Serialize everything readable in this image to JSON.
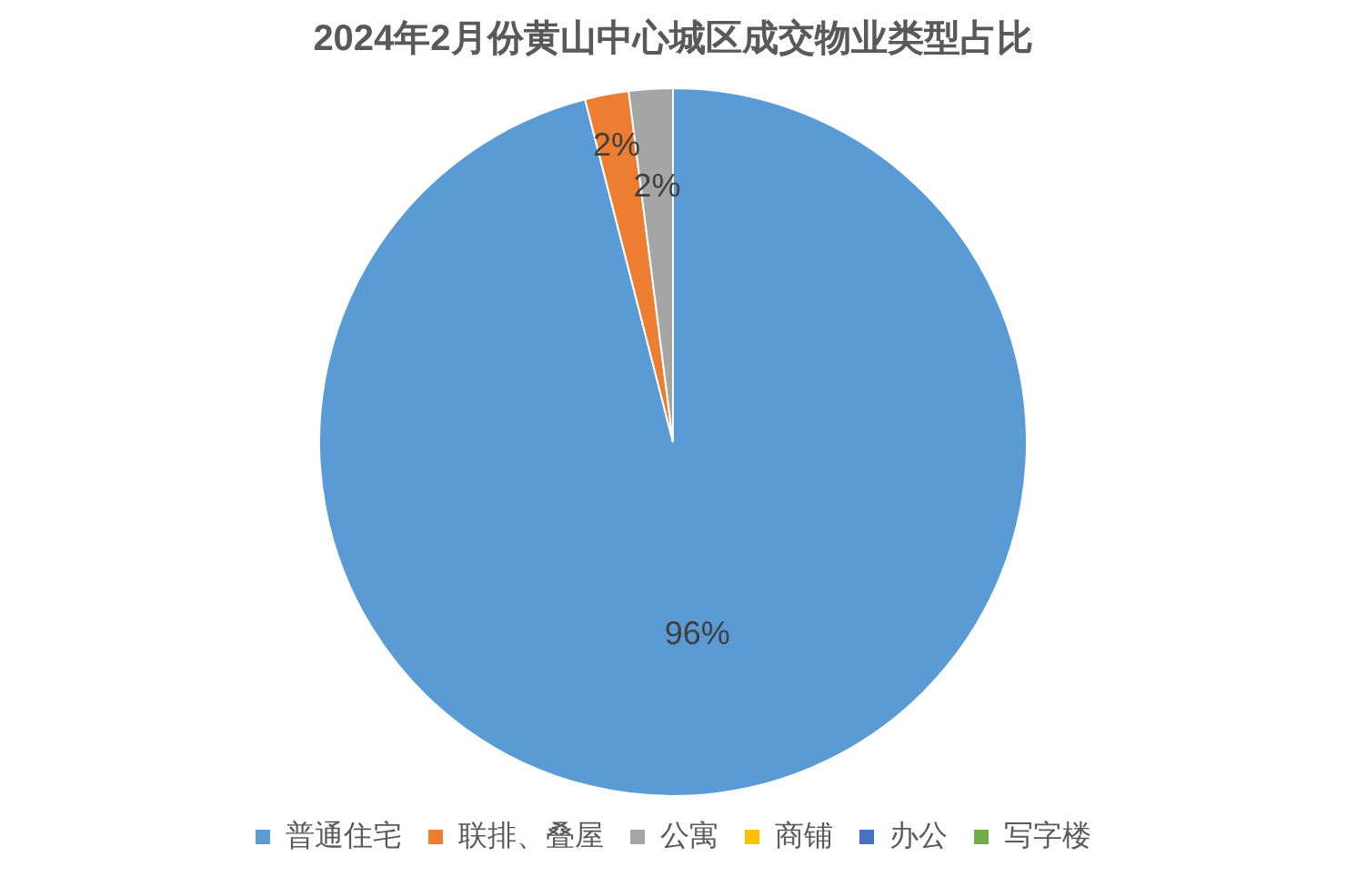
{
  "chart_data": {
    "type": "pie",
    "title": "2024年2月份黄山中心城区成交物业类型占比",
    "categories": [
      "普通住宅",
      "联排、叠屋",
      "公寓",
      "商铺",
      "办公",
      "写字楼"
    ],
    "values": [
      96,
      2,
      2,
      0,
      0,
      0
    ],
    "colors": [
      "#5b9bd5",
      "#ed7d31",
      "#a5a5a5",
      "#ffc000",
      "#4472c4",
      "#70ad47"
    ],
    "value_labels": [
      "96%",
      "2%",
      "2%",
      null,
      null,
      null
    ],
    "legend": "bottom"
  }
}
